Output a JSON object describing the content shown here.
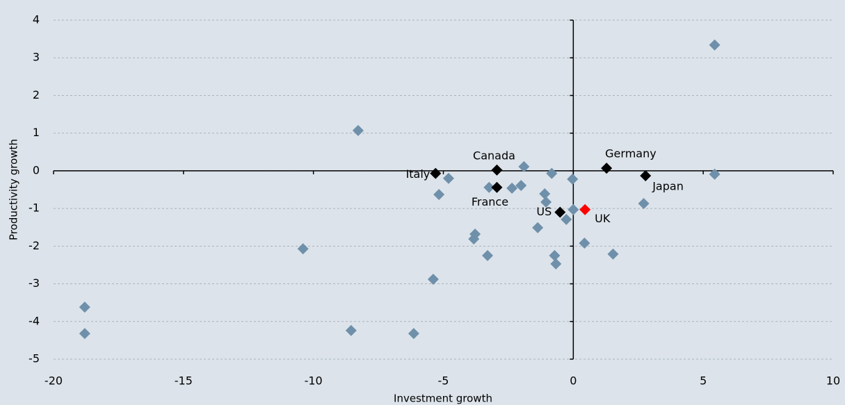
{
  "chart_data": {
    "type": "scatter",
    "x_label": "Investment growth",
    "y_label": "Productivity growth",
    "xlim": [
      -20,
      10
    ],
    "ylim": [
      -5,
      4
    ],
    "xticks": [
      -20,
      -15,
      -10,
      -5,
      0,
      5,
      10
    ],
    "yticks": [
      -5,
      -4,
      -3,
      -2,
      -1,
      0,
      1,
      2,
      3,
      4
    ],
    "grid": true,
    "series": [
      {
        "color": "#6f90aa",
        "x": [
          5.44,
          5.44,
          -8.28,
          -10.4,
          -18.8,
          -18.8,
          -8.55,
          -6.14,
          -5.39,
          -5.17,
          -4.8,
          -3.78,
          -3.83,
          -3.3,
          -3.24,
          -2.36,
          -2.01,
          -1.9,
          -0.83,
          -0.03,
          -1.1,
          -1.05,
          -1.37,
          -0.27,
          0,
          -0.72,
          -0.67,
          0.43,
          1.53,
          2.71
        ],
        "y": [
          3.34,
          -0.09,
          1.07,
          -2.07,
          -3.62,
          -4.32,
          -4.24,
          -4.32,
          -2.88,
          -0.63,
          -0.2,
          -1.68,
          -1.81,
          -2.25,
          -0.44,
          -0.46,
          -0.39,
          0.11,
          -0.07,
          -0.22,
          -0.61,
          -0.83,
          -1.51,
          -1.29,
          -1.03,
          -2.25,
          -2.47,
          -1.92,
          -2.21,
          -0.87
        ]
      },
      {
        "color": "#000000",
        "labels": [
          "Italy",
          "Canada",
          "France",
          "Germany",
          "Japan",
          "US"
        ],
        "x": [
          -5.3,
          -2.94,
          -2.94,
          1.28,
          2.78,
          -0.51
        ],
        "y": [
          -0.07,
          0.02,
          -0.44,
          0.07,
          -0.13,
          -1.1
        ]
      },
      {
        "color": "#ff0000",
        "labels": [
          "UK"
        ],
        "x": [
          0.45
        ],
        "y": [
          -1.03
        ]
      }
    ]
  }
}
